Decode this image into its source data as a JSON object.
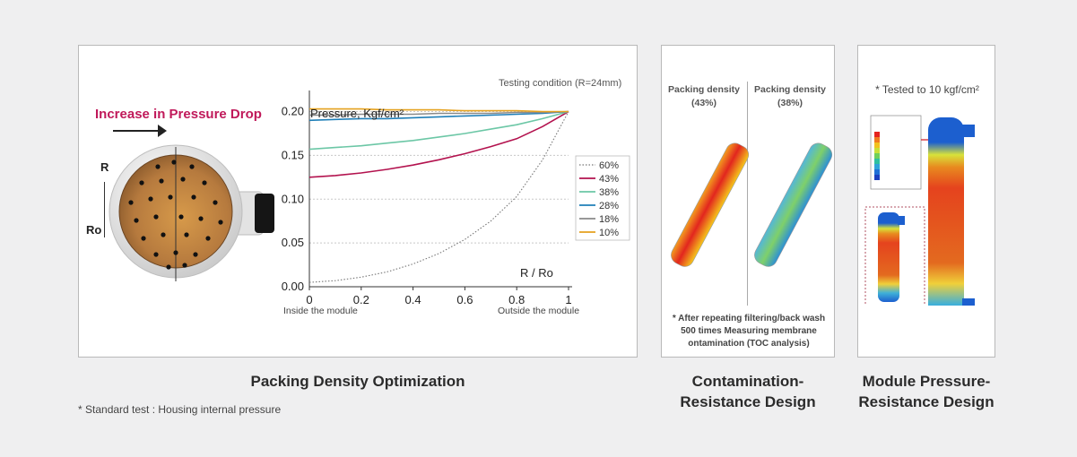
{
  "panels": {
    "main": {
      "testing_condition": "Testing condition (R=24mm)",
      "increase_label": "Increase in Pressure Drop",
      "label_R": "R",
      "label_Ro": "Ro",
      "caption": "Packing Density Optimization",
      "footnote": "* Standard test : Housing internal pressure"
    },
    "contamination": {
      "head_left": "Packing density (43%)",
      "head_right": "Packing density (38%)",
      "note": "* After repeating filtering/back wash 500 times Measuring membrane ontamination (TOC analysis)",
      "caption_line1": "Contamination-",
      "caption_line2": "Resistance Design"
    },
    "pressure": {
      "head": "* Tested to 10 kgf/cm²",
      "caption_line1": "Module Pressure-",
      "caption_line2": "Resistance Design"
    }
  },
  "chart_data": {
    "type": "line",
    "ylabel": "Pressure, Kgf/cm²",
    "xlabel": "R / Ro",
    "xlabel_left": "Inside the module",
    "xlabel_right": "Outside the module",
    "xlim": [
      0,
      1
    ],
    "ylim": [
      0,
      0.22
    ],
    "x_ticks": [
      "0",
      "0.2",
      "0.4",
      "0.6",
      "0.8",
      "1"
    ],
    "y_ticks": [
      "0.00",
      "0.05",
      "0.10",
      "0.15",
      "0.20"
    ],
    "x": [
      0,
      0.1,
      0.2,
      0.3,
      0.4,
      0.5,
      0.6,
      0.7,
      0.8,
      0.9,
      1.0
    ],
    "series": [
      {
        "name": "60%",
        "color": "#777777",
        "dashed": true,
        "values": [
          0.005,
          0.007,
          0.011,
          0.017,
          0.026,
          0.038,
          0.054,
          0.075,
          0.103,
          0.145,
          0.2
        ]
      },
      {
        "name": "43%",
        "color": "#b3124e",
        "dashed": false,
        "values": [
          0.125,
          0.127,
          0.13,
          0.134,
          0.139,
          0.145,
          0.152,
          0.16,
          0.169,
          0.183,
          0.2
        ]
      },
      {
        "name": "38%",
        "color": "#6cc7a6",
        "dashed": false,
        "values": [
          0.157,
          0.159,
          0.161,
          0.164,
          0.167,
          0.171,
          0.175,
          0.18,
          0.185,
          0.192,
          0.2
        ]
      },
      {
        "name": "28%",
        "color": "#1f7fb8",
        "dashed": false,
        "values": [
          0.19,
          0.191,
          0.192,
          0.192,
          0.193,
          0.194,
          0.195,
          0.196,
          0.197,
          0.198,
          0.2
        ]
      },
      {
        "name": "18%",
        "color": "#8a8a8a",
        "dashed": false,
        "values": [
          0.196,
          0.196,
          0.197,
          0.197,
          0.197,
          0.198,
          0.198,
          0.198,
          0.199,
          0.199,
          0.2
        ]
      },
      {
        "name": "10%",
        "color": "#e5a11e",
        "dashed": false,
        "values": [
          0.203,
          0.203,
          0.203,
          0.202,
          0.202,
          0.202,
          0.201,
          0.201,
          0.201,
          0.2,
          0.2
        ]
      }
    ]
  }
}
